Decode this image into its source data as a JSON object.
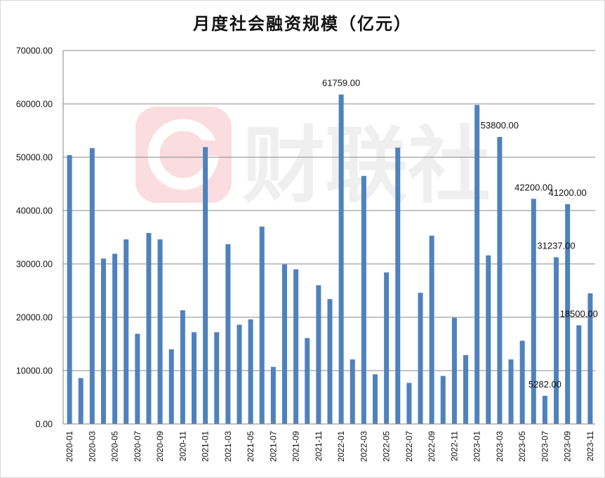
{
  "chart_data": {
    "type": "bar",
    "title": "月度社会融资规模（亿元）",
    "xlabel": "",
    "ylabel": "",
    "ylim": [
      0,
      70000
    ],
    "yticks": [
      "0.00",
      "10000.00",
      "20000.00",
      "30000.00",
      "40000.00",
      "50000.00",
      "60000.00",
      "70000.00"
    ],
    "grid": true,
    "bar_color": "#4f81bd",
    "categories": [
      "2020-01",
      "2020-02",
      "2020-03",
      "2020-04",
      "2020-05",
      "2020-06",
      "2020-07",
      "2020-08",
      "2020-09",
      "2020-10",
      "2020-11",
      "2020-12",
      "2021-01",
      "2021-02",
      "2021-03",
      "2021-04",
      "2021-05",
      "2021-06",
      "2021-07",
      "2021-08",
      "2021-09",
      "2021-10",
      "2021-11",
      "2021-12",
      "2022-01",
      "2022-02",
      "2022-03",
      "2022-04",
      "2022-05",
      "2022-06",
      "2022-07",
      "2022-08",
      "2022-09",
      "2022-10",
      "2022-11",
      "2022-12",
      "2023-01",
      "2023-02",
      "2023-03",
      "2023-04",
      "2023-05",
      "2023-06",
      "2023-07",
      "2023-08",
      "2023-09",
      "2023-10",
      "2023-11"
    ],
    "x_tick_labels": [
      "2020-01",
      "2020-03",
      "2020-05",
      "2020-07",
      "2020-09",
      "2020-11",
      "2021-01",
      "2021-03",
      "2021-05",
      "2021-07",
      "2021-09",
      "2021-11",
      "2022-01",
      "2022-03",
      "2022-05",
      "2022-07",
      "2022-09",
      "2022-11",
      "2023-01",
      "2023-03",
      "2023-05",
      "2023-07",
      "2023-09",
      "2023-11"
    ],
    "values": [
      50400,
      8600,
      51700,
      31000,
      31900,
      34600,
      16900,
      35800,
      34600,
      14000,
      21300,
      17200,
      51900,
      17200,
      33700,
      18600,
      19600,
      37000,
      10700,
      29900,
      29000,
      16100,
      26000,
      23400,
      61759,
      12100,
      46500,
      9300,
      28400,
      51800,
      7700,
      24600,
      35300,
      9000,
      19900,
      12900,
      59800,
      31600,
      53800,
      12100,
      15600,
      42200,
      5282,
      31237,
      41200,
      18500,
      24500
    ],
    "data_labels": [
      {
        "index": 24,
        "text": "61759.00"
      },
      {
        "index": 38,
        "text": "53800.00"
      },
      {
        "index": 41,
        "text": "42200.00"
      },
      {
        "index": 42,
        "text": "5282.00"
      },
      {
        "index": 43,
        "text": "31237.00"
      },
      {
        "index": 44,
        "text": "41200.00"
      },
      {
        "index": 45,
        "text": "18500.00"
      }
    ],
    "watermark": "财联社"
  }
}
